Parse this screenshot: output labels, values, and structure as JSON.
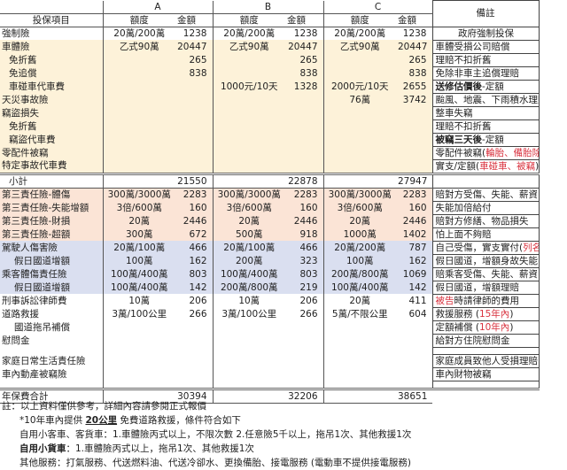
{
  "header": {
    "item_label": "投保項目",
    "columns": [
      "A",
      "B",
      "C"
    ],
    "limit_label": "額度",
    "amount_label": "金額",
    "remark_label": "備註"
  },
  "colors": {
    "yellow": "#fdf2d9",
    "pink": "#fbe4d6",
    "blue": "#dadff0",
    "red": "#d9333f"
  },
  "rows": [
    {
      "group": "white",
      "item": "強制險",
      "indent": 0,
      "a": [
        "20萬/200萬",
        "1238"
      ],
      "b": [
        "20萬/200萬",
        "1238"
      ],
      "c": [
        "20萬/200萬",
        "1238"
      ],
      "remark": [
        {
          "t": "政府強制投保"
        }
      ],
      "remark_center": true
    },
    {
      "group": "yellow",
      "item": "車體險",
      "indent": 0,
      "a": [
        "乙式90萬",
        "20447"
      ],
      "b": [
        "乙式90萬",
        "20447"
      ],
      "c": [
        "乙式90萬",
        "20447"
      ],
      "remark": [
        {
          "t": "車體受損公司賠償"
        }
      ]
    },
    {
      "group": "yellow",
      "item": "免折舊",
      "indent": 1,
      "a": [
        "",
        "265"
      ],
      "b": [
        "",
        "265"
      ],
      "c": [
        "",
        "265"
      ],
      "remark": [
        {
          "t": "理賠不扣折舊"
        }
      ]
    },
    {
      "group": "yellow",
      "item": "免追償",
      "indent": 1,
      "a": [
        "",
        "838"
      ],
      "b": [
        "",
        "838"
      ],
      "c": [
        "",
        "838"
      ],
      "remark": [
        {
          "t": "免除非車主追償理賠"
        }
      ]
    },
    {
      "group": "yellow",
      "item": "車碰車代車費",
      "indent": 1,
      "a": [
        "",
        ""
      ],
      "b": [
        "1000元/10天",
        "1328"
      ],
      "c": [
        "2000元/10天",
        "2655"
      ],
      "remark": [
        {
          "t": "送修估價後",
          "s": "b"
        },
        {
          "t": "-定額"
        }
      ]
    },
    {
      "group": "yellow",
      "item": "天災事故險",
      "indent": 0,
      "a": [
        "",
        ""
      ],
      "b": [
        "",
        ""
      ],
      "c": [
        "76萬",
        "3742"
      ],
      "remark": [
        {
          "t": "颱風、地震、下雨積水理賠"
        }
      ]
    },
    {
      "group": "yellow",
      "item": "竊盜損失",
      "indent": 0,
      "a": [
        "",
        ""
      ],
      "b": [
        "",
        ""
      ],
      "c": [
        "",
        ""
      ],
      "remark": [
        {
          "t": "整車失竊"
        }
      ]
    },
    {
      "group": "yellow",
      "item": "免折舊",
      "indent": 1,
      "a": [
        "",
        ""
      ],
      "b": [
        "",
        ""
      ],
      "c": [
        "",
        ""
      ],
      "remark": [
        {
          "t": "理賠不扣折舊"
        }
      ]
    },
    {
      "group": "yellow",
      "item": "竊盜代車費",
      "indent": 1,
      "a": [
        "",
        ""
      ],
      "b": [
        "",
        ""
      ],
      "c": [
        "",
        ""
      ],
      "remark": [
        {
          "t": "被竊三天後",
          "s": "b"
        },
        {
          "t": "-定額"
        }
      ]
    },
    {
      "group": "yellow",
      "item": "零配件被竊",
      "indent": 0,
      "a": [
        "",
        ""
      ],
      "b": [
        "",
        ""
      ],
      "c": [
        "",
        ""
      ],
      "remark": [
        {
          "t": "零配件被竊("
        },
        {
          "t": "輪胎、備胎除外",
          "s": "red"
        },
        {
          "t": ")"
        }
      ]
    },
    {
      "group": "yellow",
      "item": "特定事故代車費",
      "indent": 0,
      "a": [
        "",
        ""
      ],
      "b": [
        "",
        ""
      ],
      "c": [
        "",
        ""
      ],
      "remark": [
        {
          "t": "實支/定額("
        },
        {
          "t": "車碰車、被竊",
          "s": "red"
        },
        {
          "t": ")"
        }
      ]
    },
    {
      "group": "subtotal",
      "item": "小計",
      "indent": 1,
      "a": [
        "",
        "21550"
      ],
      "b": [
        "",
        "22878"
      ],
      "c": [
        "",
        "27947"
      ],
      "remark": []
    },
    {
      "group": "pink",
      "item": "第三責任險-體傷",
      "indent": 0,
      "a": [
        "300萬/3000萬",
        "2283"
      ],
      "b": [
        "300萬/3000萬",
        "2283"
      ],
      "c": [
        "300萬/3000萬",
        "2283"
      ],
      "remark": [
        {
          "t": "賠對方受傷、失能、薪資"
        }
      ]
    },
    {
      "group": "pink",
      "item": "第三責任險-失能增額",
      "indent": 0,
      "a": [
        "3倍/600萬",
        "160"
      ],
      "b": [
        "3倍/600萬",
        "160"
      ],
      "c": [
        "3倍/600萬",
        "160"
      ],
      "remark": [
        {
          "t": "失能加倍給付"
        }
      ]
    },
    {
      "group": "pink",
      "item": "第三責任險-財損",
      "indent": 0,
      "a": [
        "20萬",
        "2446"
      ],
      "b": [
        "20萬",
        "2446"
      ],
      "c": [
        "20萬",
        "2446"
      ],
      "remark": [
        {
          "t": "賠對方修繕、物品損失"
        }
      ]
    },
    {
      "group": "pink",
      "item": "第三責任險-超額",
      "indent": 0,
      "a": [
        "300萬",
        "672"
      ],
      "b": [
        "500萬",
        "918"
      ],
      "c": [
        "1000萬",
        "1402"
      ],
      "remark": [
        {
          "t": "怕上面不夠賠"
        }
      ]
    },
    {
      "group": "blue",
      "item": "駕駛人傷害險",
      "indent": 0,
      "a": [
        "20萬/100萬",
        "466"
      ],
      "b": [
        "20萬/100萬",
        "466"
      ],
      "c": [
        "20萬/200萬",
        "787"
      ],
      "remark": [
        {
          "t": "自己受傷，實支實付("
        },
        {
          "t": "列名冊",
          "s": "red"
        },
        {
          "t": ")"
        }
      ]
    },
    {
      "group": "blue",
      "item": "假日國道增額",
      "indent": 2,
      "a": [
        "100萬",
        "162"
      ],
      "b": [
        "200萬",
        "323"
      ],
      "c": [
        "100萬",
        "162"
      ],
      "remark": [
        {
          "t": "假日國道，增額身故失能"
        }
      ]
    },
    {
      "group": "blue",
      "item": "乘客體傷責任險",
      "indent": 0,
      "a": [
        "100萬/400萬",
        "803"
      ],
      "b": [
        "100萬/400萬",
        "803"
      ],
      "c": [
        "200萬/800萬",
        "1069"
      ],
      "remark": [
        {
          "t": "賠乘客受傷、失能、薪資"
        }
      ]
    },
    {
      "group": "blue",
      "item": "假日國道增額",
      "indent": 2,
      "a": [
        "100萬/400萬",
        "142"
      ],
      "b": [
        "200萬/800萬",
        "219"
      ],
      "c": [
        "100萬/400萬",
        "142"
      ],
      "remark": [
        {
          "t": "假日國道，增額理賠"
        }
      ]
    },
    {
      "group": "white",
      "item": "刑事訴訟律師費",
      "indent": 0,
      "a": [
        "10萬",
        "206"
      ],
      "b": [
        "10萬",
        "206"
      ],
      "c": [
        "20萬",
        "411"
      ],
      "remark": [
        {
          "t": "被告",
          "s": "red"
        },
        {
          "t": "時請律師的費用"
        }
      ]
    },
    {
      "group": "white",
      "item": "道路救援",
      "indent": 0,
      "a": [
        "3萬/100公里",
        "266"
      ],
      "b": [
        "3萬/100公里",
        "266"
      ],
      "c": [
        "5萬/不限公里",
        "604"
      ],
      "remark": [
        {
          "t": "救援服務 ("
        },
        {
          "t": "15年內",
          "s": "red"
        },
        {
          "t": ")"
        }
      ]
    },
    {
      "group": "white",
      "item": "國道拖吊補償",
      "indent": 2,
      "a": [
        "",
        ""
      ],
      "b": [
        "",
        ""
      ],
      "c": [
        "",
        ""
      ],
      "remark": [
        {
          "t": "定額補償 ("
        },
        {
          "t": "10年內",
          "s": "red"
        },
        {
          "t": ")"
        }
      ]
    },
    {
      "group": "white",
      "item": "慰問金",
      "indent": 0,
      "a": [
        "",
        ""
      ],
      "b": [
        "",
        ""
      ],
      "c": [
        "",
        ""
      ],
      "remark": [
        {
          "t": "給對方住院慰問金"
        }
      ]
    },
    {
      "group": "gap",
      "item": "",
      "indent": 0,
      "a": [
        "",
        ""
      ],
      "b": [
        "",
        ""
      ],
      "c": [
        "",
        ""
      ],
      "remark": []
    },
    {
      "group": "white",
      "item": "家庭日常生活責任險",
      "indent": 0,
      "a": [
        "",
        ""
      ],
      "b": [
        "",
        ""
      ],
      "c": [
        "",
        ""
      ],
      "remark": [
        {
          "t": "家庭成員致他人受損理賠"
        }
      ]
    },
    {
      "group": "white",
      "item": "車內動產被竊險",
      "indent": 0,
      "a": [
        "",
        ""
      ],
      "b": [
        "",
        ""
      ],
      "c": [
        "",
        ""
      ],
      "remark": [
        {
          "t": "車內財物被竊"
        }
      ]
    },
    {
      "group": "gap",
      "item": "",
      "indent": 0,
      "a": [
        "",
        ""
      ],
      "b": [
        "",
        ""
      ],
      "c": [
        "",
        ""
      ],
      "remark": []
    },
    {
      "group": "total",
      "item": "年保費合計",
      "indent": 0,
      "a": [
        "",
        "30394"
      ],
      "b": [
        "",
        "32206"
      ],
      "c": [
        "",
        "38651"
      ],
      "remark": null
    }
  ],
  "notes": {
    "line1": "註：以上資料僅供參考，詳細內容請參閱正式報價",
    "line2_pre": "*10年車內提供 ",
    "line2_em": "20公里",
    "line2_post": " 免費道路救援，條件符合如下",
    "line3": "自用小客車、客貨車：1.車體險丙式以上，不限次數 2.任意險5千以上，拖吊1次、其他救援1次",
    "line4_em": "自用小貨車",
    "line4_post": "：1.車體險丙式以上，拖吊1次、其他救援1次",
    "line5": "其他服務：打氣服務、代送燃料油、代送冷卻水、更換備胎、接電服務 (電動車不提供接電服務)"
  }
}
